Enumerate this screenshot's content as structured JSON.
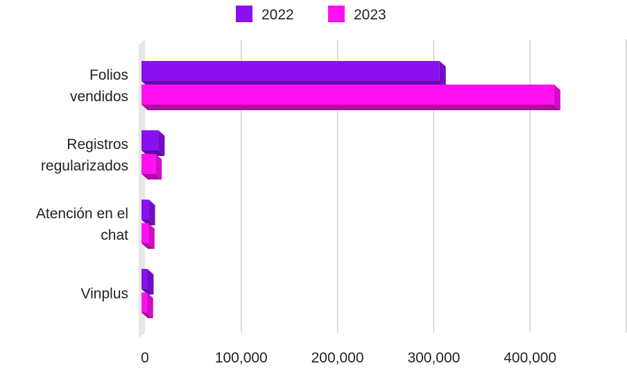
{
  "chart_data": {
    "type": "bar",
    "orientation": "horizontal",
    "style": "3d",
    "categories": [
      [
        "Folios",
        "vendidos"
      ],
      [
        "Registros",
        "regularizados"
      ],
      [
        "Atención en el",
        "chat"
      ],
      [
        "Vinplus"
      ]
    ],
    "series": [
      {
        "name": "2022",
        "values": [
          306000,
          14000,
          4000,
          2500
        ]
      },
      {
        "name": "2023",
        "values": [
          425000,
          11000,
          3500,
          2000
        ]
      }
    ],
    "xlim": [
      0,
      500000
    ],
    "xticks": [
      0,
      100000,
      200000,
      300000,
      400000
    ],
    "xtick_labels": [
      "0",
      "100,000",
      "200,000",
      "300,000",
      "400,000"
    ],
    "grid": true,
    "legend_position": "top",
    "colors": {
      "2022": "#8b10f0",
      "2023": "#ff10f0",
      "grid": "#cfcfcf",
      "wall": "#e6e6e6"
    }
  }
}
